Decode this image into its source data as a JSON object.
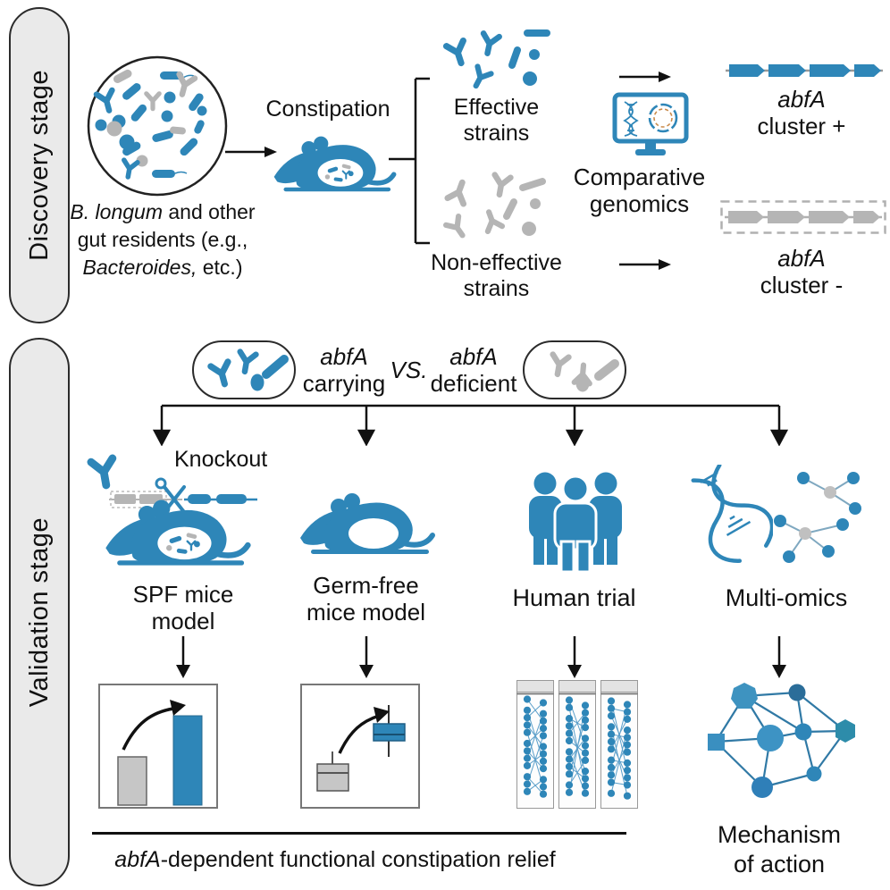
{
  "figure": {
    "kind": "graphical-abstract-diagram"
  },
  "colors": {
    "accent_blue": "#2e86b8",
    "muted_gray": "#b5b5b5",
    "pill_bg": "#eaeaea",
    "ink": "#111111"
  },
  "stages": {
    "discovery": "Discovery stage",
    "validation": "Validation stage"
  },
  "discovery": {
    "microbiome_caption": {
      "italic1": "B. longum",
      "rest1": " and other",
      "line2": "gut residents (e.g.,",
      "italic2": "Bacteroides,",
      "rest2": " etc.)"
    },
    "constipation_label": "Constipation",
    "effective_label": "Effective strains",
    "non_effective_label": "Non-effective strains",
    "comparative_label": "Comparative genomics",
    "cluster_positive": {
      "gene": "abfA",
      "status": "cluster +"
    },
    "cluster_negative": {
      "gene": "abfA",
      "status": "cluster -"
    }
  },
  "validation": {
    "carrying": {
      "gene": "abfA",
      "word": "carrying"
    },
    "versus": "VS.",
    "deficient": {
      "gene": "abfA",
      "word": "deficient"
    },
    "knockout_label": "Knockout",
    "columns": [
      {
        "label": "SPF mice model"
      },
      {
        "label": "Germ-free mice model"
      },
      {
        "label": "Human trial"
      },
      {
        "label": "Multi-omics"
      }
    ],
    "human_panels": {
      "count": 3,
      "rows": 12
    },
    "mechanism_label": "Mechanism of action"
  },
  "caption": {
    "italic": "abfA",
    "rest": "-dependent functional constipation relief"
  }
}
